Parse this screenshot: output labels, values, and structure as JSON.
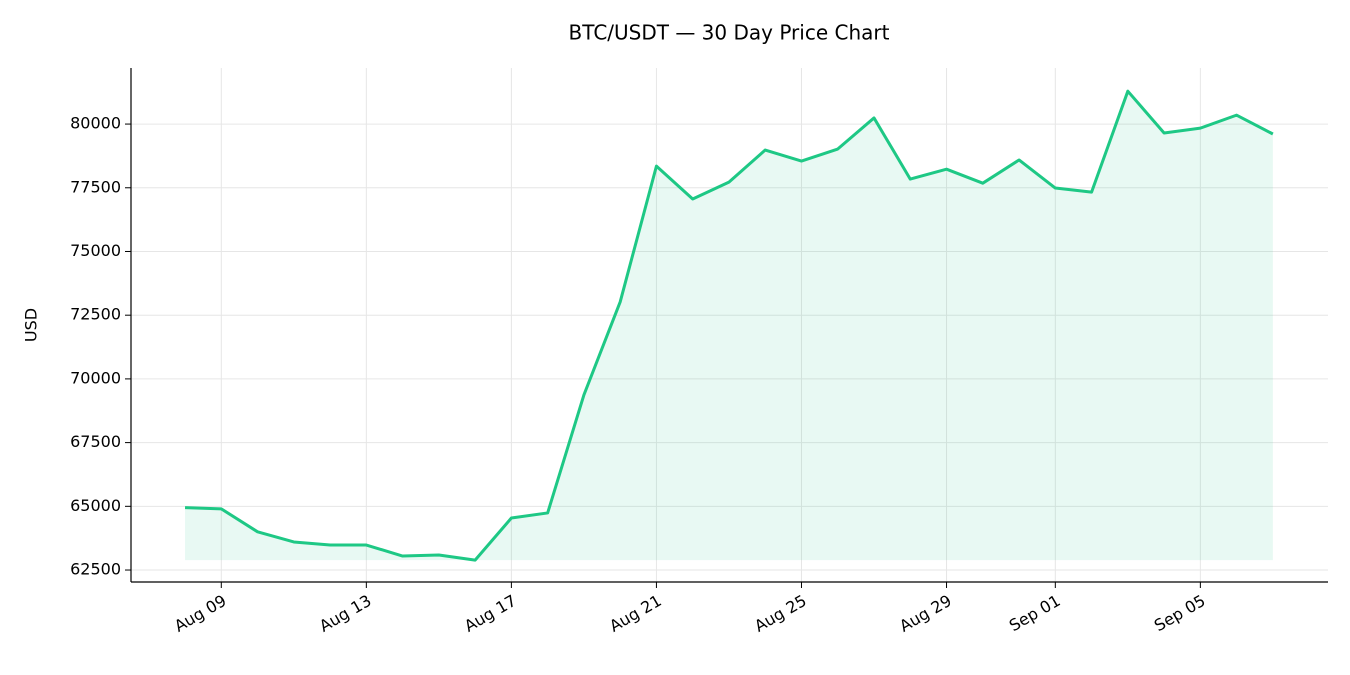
{
  "chart_data": {
    "type": "line",
    "title": "BTC/USDT — 30 Day Price Chart",
    "y_label": "USD",
    "x": [
      "Aug 08",
      "Aug 09",
      "Aug 10",
      "Aug 11",
      "Aug 12",
      "Aug 13",
      "Aug 14",
      "Aug 15",
      "Aug 16",
      "Aug 17",
      "Aug 18",
      "Aug 19",
      "Aug 20",
      "Aug 21",
      "Aug 22",
      "Aug 23",
      "Aug 24",
      "Aug 25",
      "Aug 26",
      "Aug 27",
      "Aug 28",
      "Aug 29",
      "Aug 30",
      "Aug 31",
      "Sep 01",
      "Sep 02",
      "Sep 03",
      "Sep 04",
      "Sep 05",
      "Sep 06",
      "Sep 07"
    ],
    "series": [
      {
        "name": "BTC/USDT",
        "color": "#1ec885",
        "values": [
          64950,
          64900,
          64000,
          63600,
          63480,
          63480,
          63050,
          63090,
          62890,
          64540,
          64740,
          69370,
          73020,
          78350,
          77060,
          77720,
          78980,
          78550,
          79020,
          80240,
          77840,
          78230,
          77680,
          78590,
          77490,
          77330,
          81290,
          79650,
          79840,
          80350,
          79610
        ]
      }
    ],
    "xticks": [
      "Aug 09",
      "Aug 13",
      "Aug 17",
      "Aug 21",
      "Aug 25",
      "Aug 29",
      "Sep 01",
      "Sep 05"
    ],
    "ylim": [
      62030,
      82200
    ],
    "yticks": [
      62500,
      65000,
      67500,
      70000,
      72500,
      75000,
      77500,
      80000
    ],
    "grid": true,
    "fill": true
  }
}
